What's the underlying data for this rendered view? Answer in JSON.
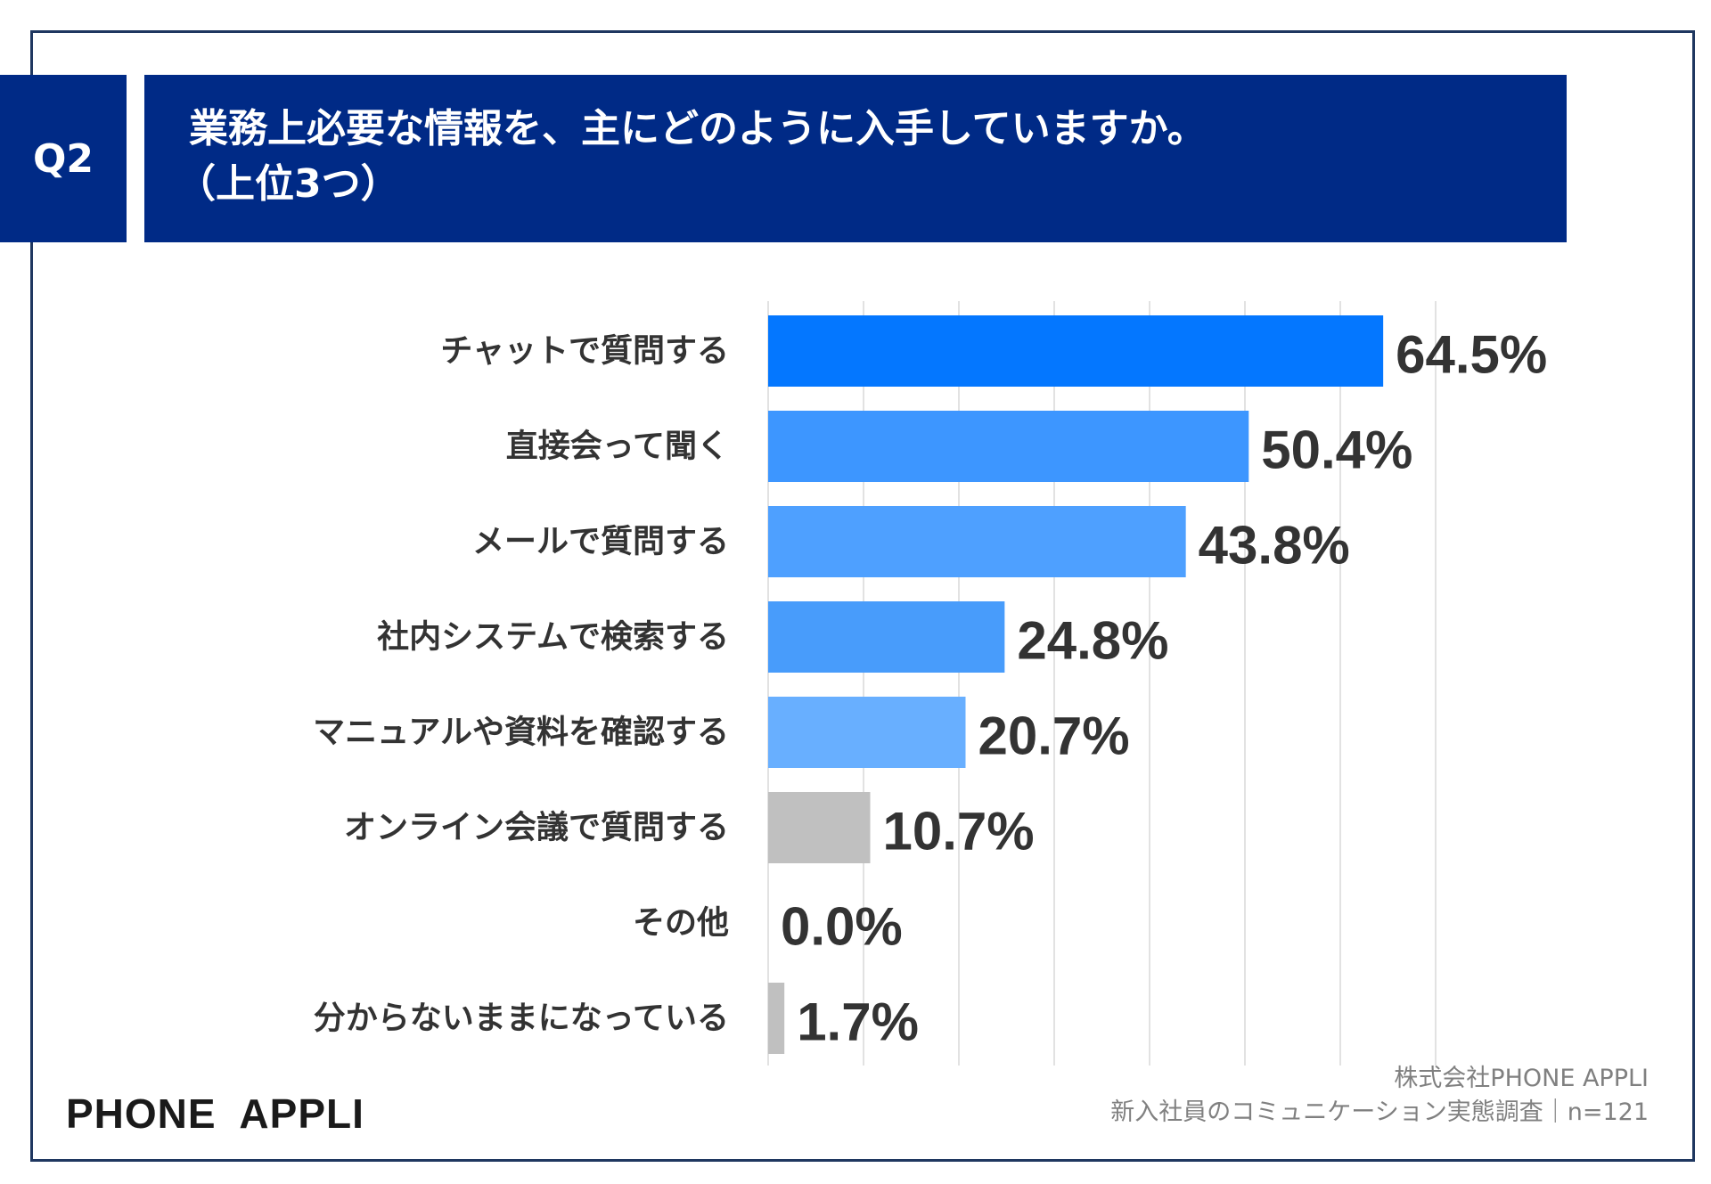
{
  "question": {
    "badge": "Q2",
    "title_line1": "業務上必要な情報を、主にどのように入手していますか。",
    "title_line2": "（上位3つ）"
  },
  "colors": {
    "header_bg": "#002a86",
    "frame_border": "#1f3760",
    "gridline": "#d9d9d9",
    "text": "#333333"
  },
  "chart_data": {
    "type": "bar",
    "orientation": "horizontal",
    "categories": [
      "チャットで質問する",
      "直接会って聞く",
      "メールで質問する",
      "社内システムで検索する",
      "マニュアルや資料を確認する",
      "オンライン会議で質問する",
      "その他",
      "分からないままになっている"
    ],
    "values": [
      64.5,
      50.4,
      43.8,
      24.8,
      20.7,
      10.7,
      0.0,
      1.7
    ],
    "value_labels": [
      "64.5%",
      "50.4%",
      "43.8%",
      "24.8%",
      "20.7%",
      "10.7%",
      "0.0%",
      "1.7%"
    ],
    "bar_colors": [
      "#0477ff",
      "#3d96ff",
      "#4ea0ff",
      "#489cfb",
      "#68afff",
      "#c0c0c0",
      "#c0c0c0",
      "#c0c0c0"
    ],
    "xlim": [
      0,
      70
    ],
    "grid": true,
    "legend": "none"
  },
  "footer": {
    "logo": "PHONE  APPLI",
    "company": "株式会社PHONE APPLI",
    "survey": "新入社員のコミュニケーション実態調査｜n=121"
  }
}
